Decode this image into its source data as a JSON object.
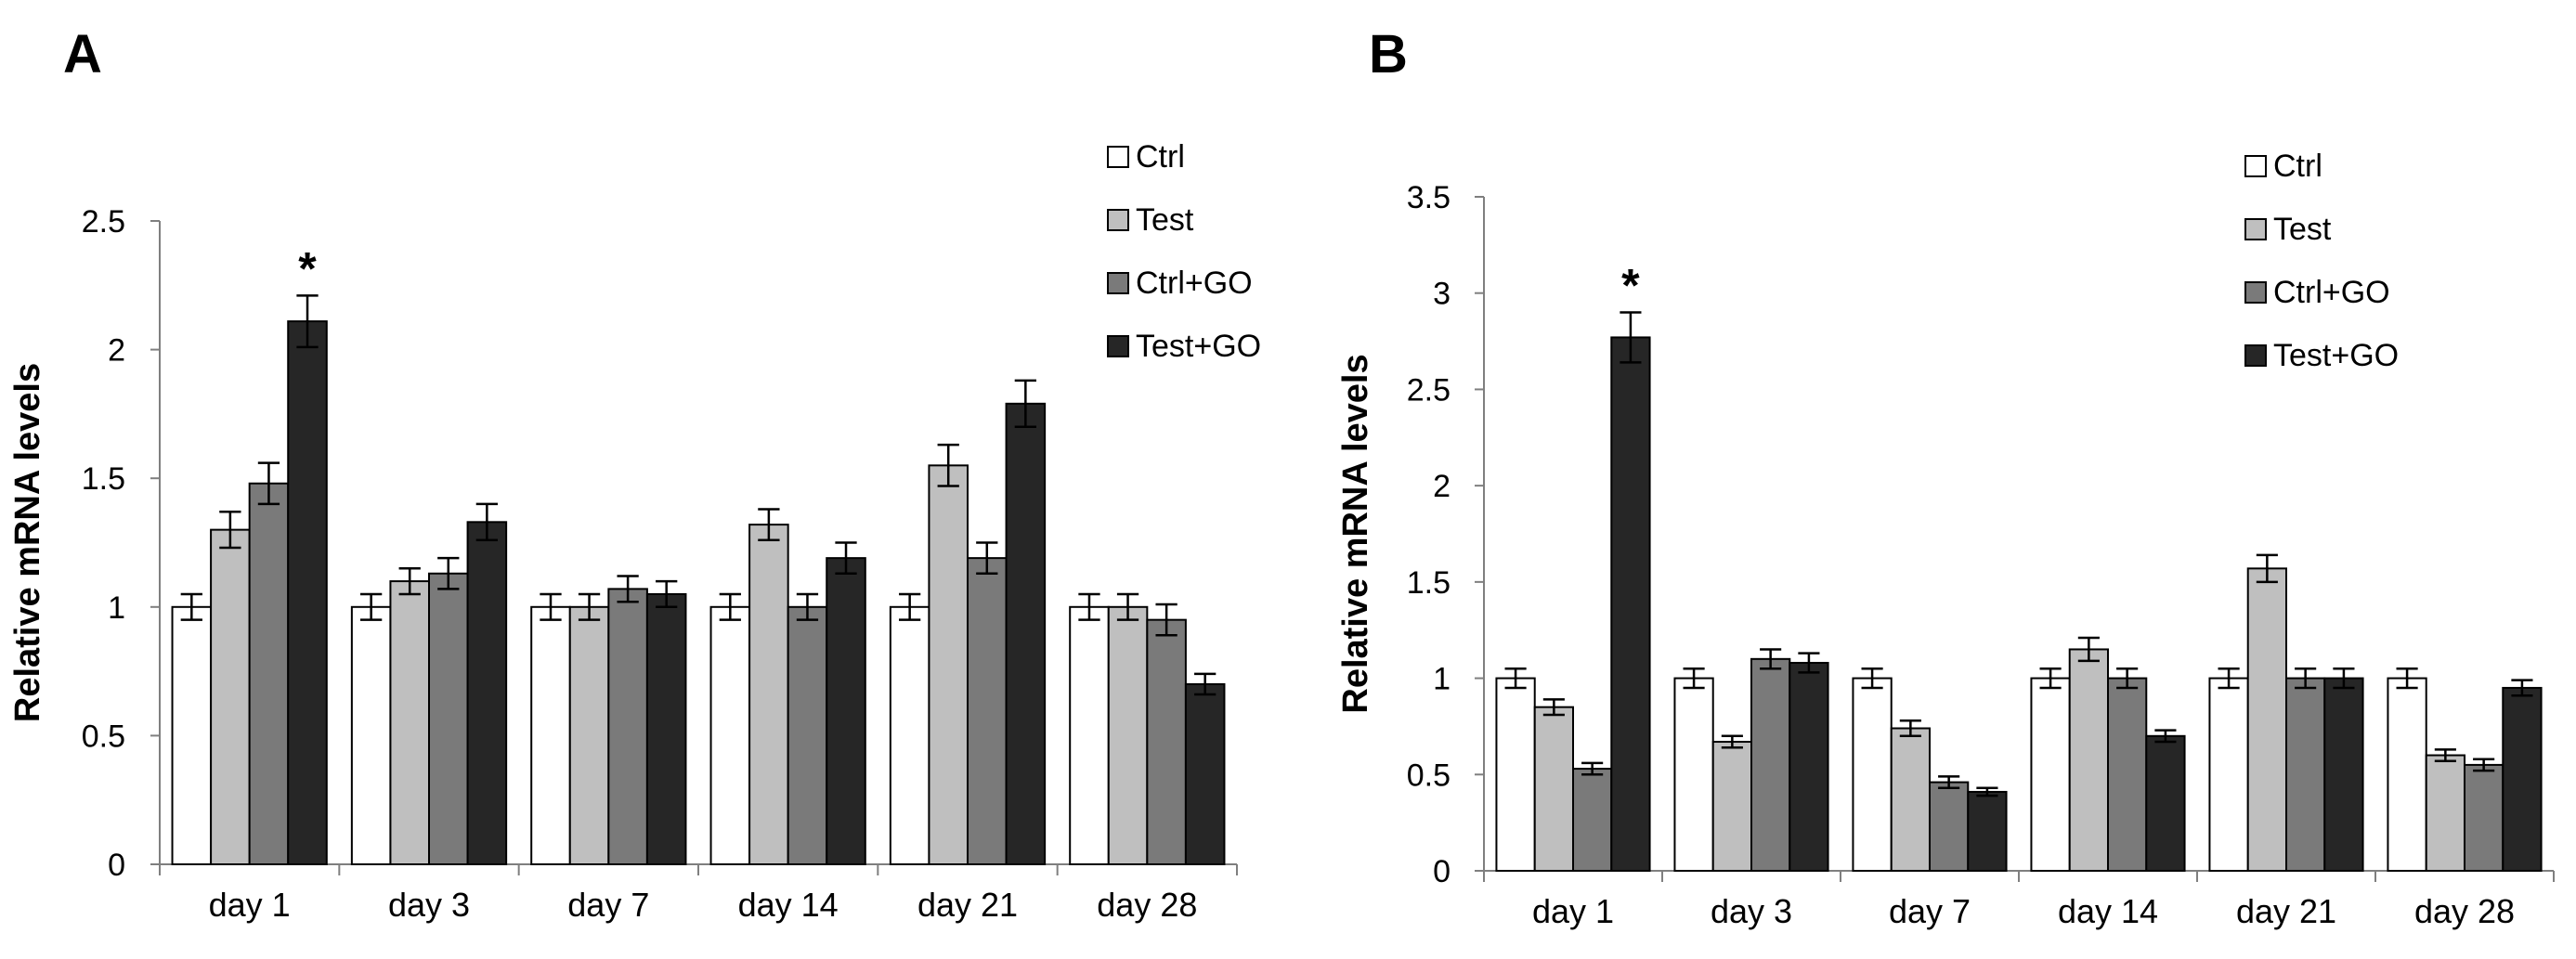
{
  "colors": {
    "ctrl": "#ffffff",
    "test": "#bfbfbf",
    "ctrl_go": "#7a7a7a",
    "test_go": "#262626",
    "axis": "#7f7f7f"
  },
  "chart_data": [
    {
      "panel_label": "A",
      "type": "bar",
      "ylabel": "Relative mRNA levels",
      "ylim": [
        0,
        2.5
      ],
      "yticks": [
        0,
        0.5,
        1,
        1.5,
        2,
        2.5
      ],
      "ytick_labels": [
        "0",
        "0.5",
        "1",
        "1.5",
        "2",
        "2.5"
      ],
      "categories": [
        "day 1",
        "day 3",
        "day 7",
        "day 14",
        "day 21",
        "day 28"
      ],
      "legend_position": "top-right",
      "series": [
        {
          "name": "Ctrl",
          "color_key": "ctrl",
          "values": [
            1.0,
            1.0,
            1.0,
            1.0,
            1.0,
            1.0
          ],
          "errors": [
            0.05,
            0.05,
            0.05,
            0.05,
            0.05,
            0.05
          ]
        },
        {
          "name": "Test",
          "color_key": "test",
          "values": [
            1.3,
            1.1,
            1.0,
            1.32,
            1.55,
            1.0
          ],
          "errors": [
            0.07,
            0.05,
            0.05,
            0.06,
            0.08,
            0.05
          ]
        },
        {
          "name": "Ctrl+GO",
          "color_key": "ctrl_go",
          "values": [
            1.48,
            1.13,
            1.07,
            1.0,
            1.19,
            0.95
          ],
          "errors": [
            0.08,
            0.06,
            0.05,
            0.05,
            0.06,
            0.06
          ]
        },
        {
          "name": "Test+GO",
          "color_key": "test_go",
          "values": [
            2.11,
            1.33,
            1.05,
            1.19,
            1.79,
            0.7
          ],
          "errors": [
            0.1,
            0.07,
            0.05,
            0.06,
            0.09,
            0.04
          ]
        }
      ],
      "annotations": [
        {
          "text": "*",
          "category": "day 1",
          "series": "Test+GO"
        }
      ]
    },
    {
      "panel_label": "B",
      "type": "bar",
      "ylabel": "Relative mRNA levels",
      "ylim": [
        0,
        3.5
      ],
      "yticks": [
        0,
        0.5,
        1,
        1.5,
        2,
        2.5,
        3,
        3.5
      ],
      "ytick_labels": [
        "0",
        "0.5",
        "1",
        "1.5",
        "2",
        "2.5",
        "3",
        "3.5"
      ],
      "categories": [
        "day 1",
        "day 3",
        "day 7",
        "day 14",
        "day 21",
        "day 28"
      ],
      "legend_position": "top-right",
      "series": [
        {
          "name": "Ctrl",
          "color_key": "ctrl",
          "values": [
            1.0,
            1.0,
            1.0,
            1.0,
            1.0,
            1.0
          ],
          "errors": [
            0.05,
            0.05,
            0.05,
            0.05,
            0.05,
            0.05
          ]
        },
        {
          "name": "Test",
          "color_key": "test",
          "values": [
            0.85,
            0.67,
            0.74,
            1.15,
            1.57,
            0.6
          ],
          "errors": [
            0.04,
            0.03,
            0.04,
            0.06,
            0.07,
            0.03
          ]
        },
        {
          "name": "Ctrl+GO",
          "color_key": "ctrl_go",
          "values": [
            0.53,
            1.1,
            0.46,
            1.0,
            1.0,
            0.55
          ],
          "errors": [
            0.03,
            0.05,
            0.03,
            0.05,
            0.05,
            0.03
          ]
        },
        {
          "name": "Test+GO",
          "color_key": "test_go",
          "values": [
            2.77,
            1.08,
            0.41,
            0.7,
            1.0,
            0.95
          ],
          "errors": [
            0.13,
            0.05,
            0.02,
            0.03,
            0.05,
            0.04
          ]
        }
      ],
      "annotations": [
        {
          "text": "*",
          "category": "day 1",
          "series": "Test+GO"
        }
      ]
    }
  ]
}
